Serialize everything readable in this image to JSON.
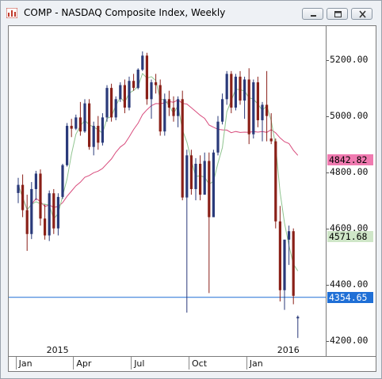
{
  "window": {
    "title": "COMP - NASDAQ Composite Index, Weekly",
    "icon": "chart-app-icon",
    "buttons": [
      "minimize",
      "restore",
      "close"
    ]
  },
  "chart_data": {
    "type": "candlestick",
    "symbol": "COMP",
    "title": "COMP - NASDAQ Composite Index, Weekly",
    "ylim": [
      4140,
      5320
    ],
    "y_ticks": [
      "4200.00",
      "4400.00",
      "4600.00",
      "4800.00",
      "5000.00",
      "5200.00"
    ],
    "y_tick_values": [
      4200,
      4400,
      4600,
      4800,
      5000,
      5200
    ],
    "x_month_labels": [
      "Jan",
      "Apr",
      "Jul",
      "Oct",
      "Jan"
    ],
    "x_month_indices": [
      1,
      14,
      27,
      40,
      53
    ],
    "year_labels": [
      {
        "text": "2015",
        "index": 1
      },
      {
        "text": "2016",
        "index": 53
      }
    ],
    "horizontal_line": {
      "value": 4354.65,
      "color": "#1f6fd6"
    },
    "price_tags": [
      {
        "label": "4842.82",
        "value": 4842.82,
        "bg": "#f07ab0",
        "color": "#000000"
      },
      {
        "label": "4571.68",
        "value": 4571.68,
        "bg": "#cfe6c8",
        "color": "#000000"
      },
      {
        "label": "4354.65",
        "value": 4354.65,
        "bg": "#1f6fd6",
        "color": "#ffffff"
      }
    ],
    "bull_color": "#2a3a7a",
    "bear_color": "#8a2018",
    "ma_fast_color": "#8fc48f",
    "ma_slow_color": "#d84b7c",
    "candles": [
      [
        4726,
        4780,
        4690,
        4755
      ],
      [
        4755,
        4792,
        4640,
        4665
      ],
      [
        4665,
        4720,
        4520,
        4580
      ],
      [
        4580,
        4765,
        4562,
        4740
      ],
      [
        4740,
        4805,
        4700,
        4795
      ],
      [
        4795,
        4810,
        4610,
        4635
      ],
      [
        4635,
        4685,
        4560,
        4575
      ],
      [
        4575,
        4735,
        4555,
        4725
      ],
      [
        4725,
        4740,
        4580,
        4600
      ],
      [
        4600,
        4725,
        4575,
        4712
      ],
      [
        4712,
        4830,
        4705,
        4825
      ],
      [
        4825,
        4975,
        4820,
        4965
      ],
      [
        4965,
        4990,
        4925,
        4955
      ],
      [
        4955,
        5005,
        4950,
        4995
      ],
      [
        4995,
        5050,
        4930,
        4945
      ],
      [
        4945,
        5060,
        4940,
        5045
      ],
      [
        5045,
        5060,
        4880,
        4890
      ],
      [
        4890,
        4980,
        4860,
        4965
      ],
      [
        4965,
        5000,
        4880,
        4905
      ],
      [
        4905,
        5010,
        4895,
        4995
      ],
      [
        4995,
        5110,
        4980,
        5100
      ],
      [
        5100,
        5115,
        4980,
        4995
      ],
      [
        4995,
        5070,
        4985,
        5060
      ],
      [
        5060,
        5120,
        5050,
        5110
      ],
      [
        5110,
        5130,
        5010,
        5030
      ],
      [
        5030,
        5140,
        5020,
        5125
      ],
      [
        5125,
        5150,
        5090,
        5100
      ],
      [
        5100,
        5170,
        5095,
        5165
      ],
      [
        5165,
        5230,
        5160,
        5215
      ],
      [
        5215,
        5225,
        5040,
        5060
      ],
      [
        5060,
        5130,
        4990,
        5120
      ],
      [
        5120,
        5150,
        5080,
        5110
      ],
      [
        5110,
        5130,
        4930,
        4945
      ],
      [
        4945,
        5080,
        4930,
        5060
      ],
      [
        5060,
        5090,
        5000,
        5030
      ],
      [
        5030,
        5070,
        4980,
        5000
      ],
      [
        5000,
        5070,
        4960,
        5060
      ],
      [
        5060,
        5090,
        4700,
        4710
      ],
      [
        4710,
        4880,
        4300,
        4860
      ],
      [
        4860,
        4880,
        4720,
        4740
      ],
      [
        4740,
        4850,
        4700,
        4830
      ],
      [
        4830,
        4860,
        4700,
        4720
      ],
      [
        4720,
        4870,
        4720,
        4840
      ],
      [
        4840,
        4870,
        4370,
        4640
      ],
      [
        4640,
        4880,
        4640,
        4870
      ],
      [
        4870,
        5000,
        4860,
        4980
      ],
      [
        4980,
        5080,
        4970,
        5060
      ],
      [
        5060,
        5160,
        5040,
        5150
      ],
      [
        5150,
        5160,
        5010,
        5030
      ],
      [
        5030,
        5150,
        5020,
        5140
      ],
      [
        5140,
        5160,
        5040,
        5055
      ],
      [
        5055,
        5140,
        4990,
        5130
      ],
      [
        5130,
        5170,
        4900,
        4935
      ],
      [
        4935,
        5130,
        4920,
        5120
      ],
      [
        5120,
        5140,
        4960,
        4985
      ],
      [
        4985,
        5050,
        4910,
        5040
      ],
      [
        5040,
        5160,
        4910,
        5000
      ],
      [
        4920,
        5010,
        4900,
        4910
      ],
      [
        4910,
        4920,
        4600,
        4625
      ],
      [
        4625,
        4680,
        4340,
        4380
      ],
      [
        4380,
        4560,
        4310,
        4560
      ],
      [
        4560,
        4610,
        4470,
        4590
      ],
      [
        4590,
        4600,
        4330,
        4360
      ],
      [
        4280,
        4290,
        4210,
        4285
      ]
    ]
  }
}
